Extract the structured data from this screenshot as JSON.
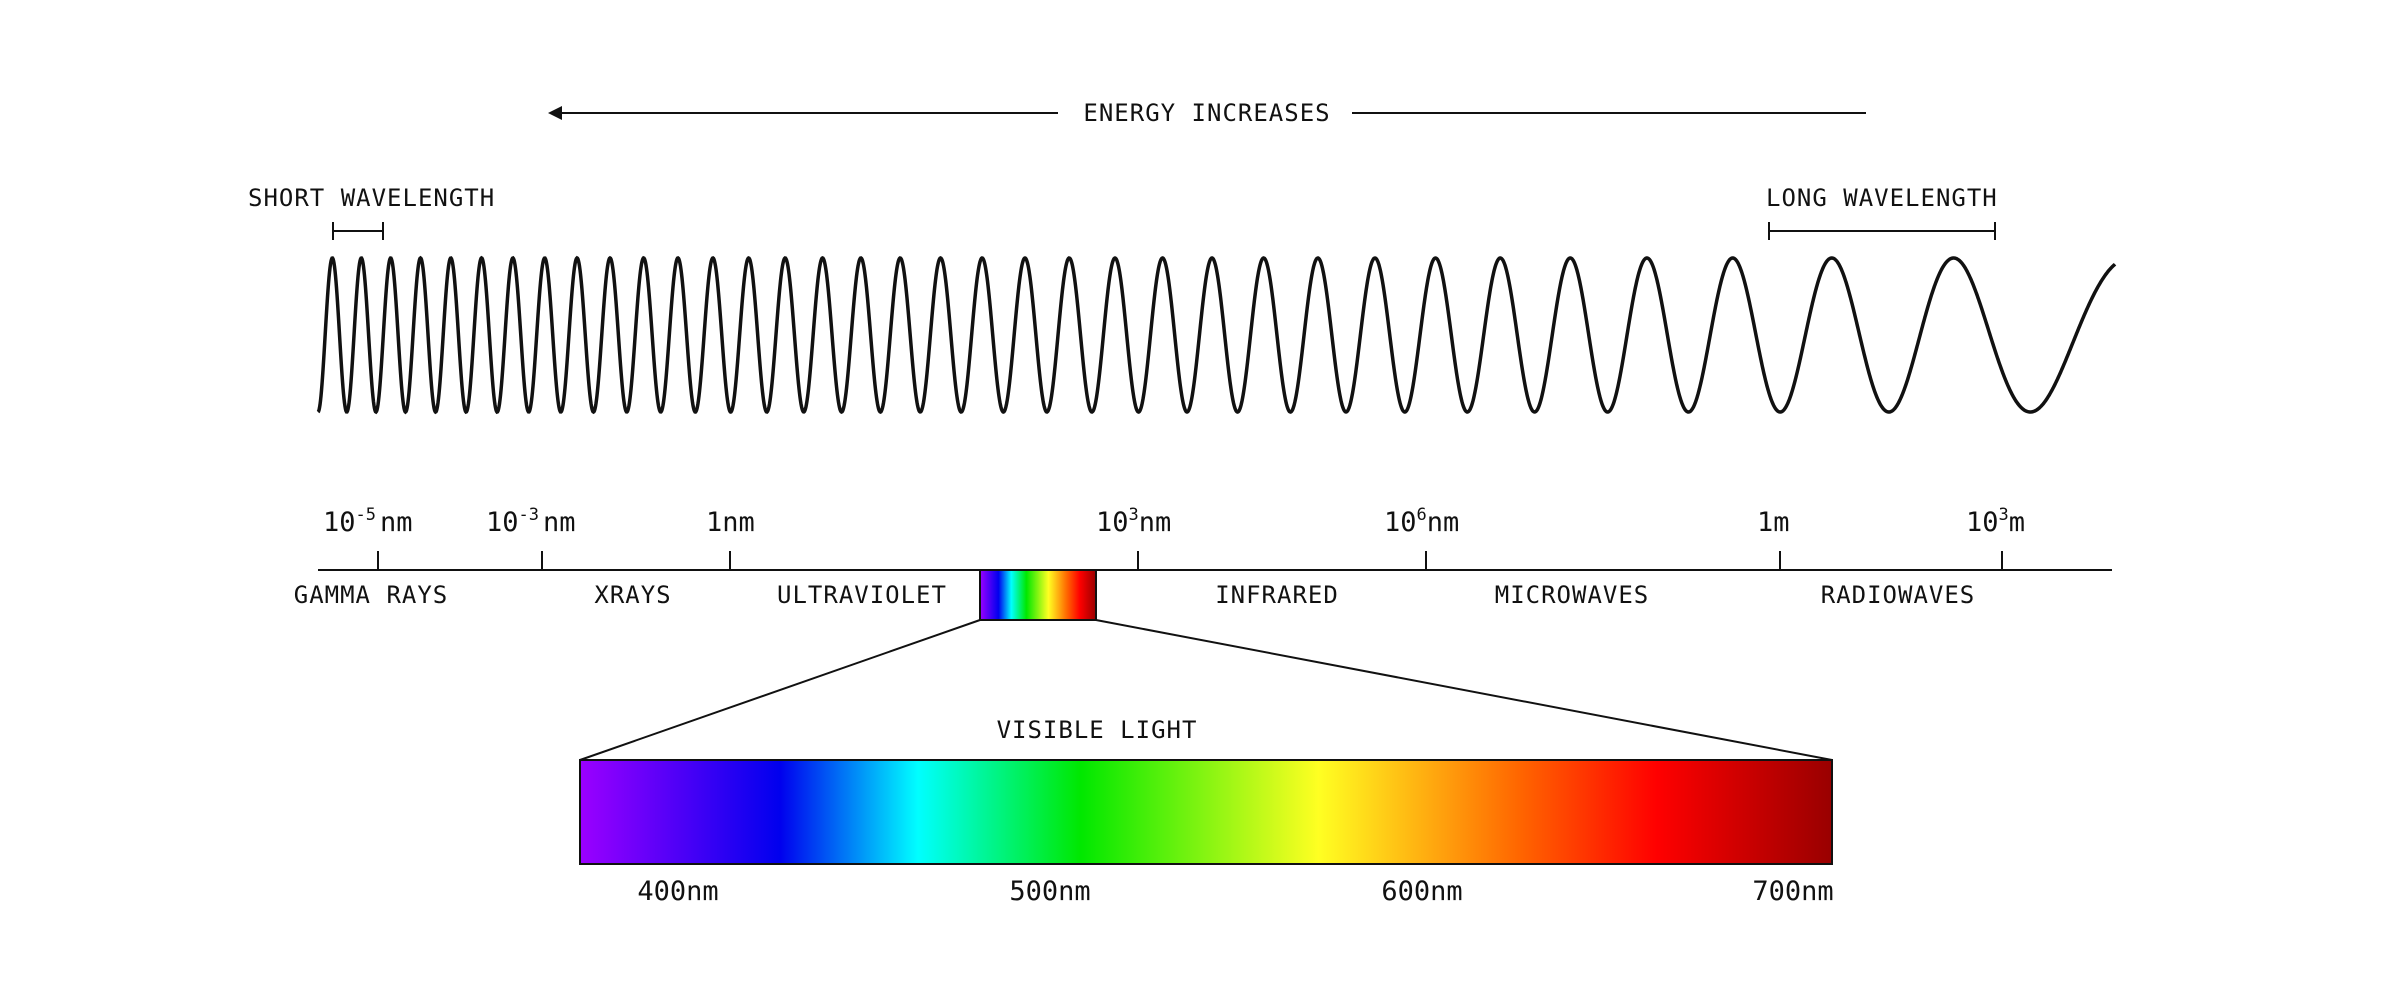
{
  "energy_label": "ENERGY INCREASES",
  "short_wavelength_label": "SHORT WAVELENGTH",
  "long_wavelength_label": "LONG WAVELENGTH",
  "scale_ticks": [
    {
      "base": "10",
      "exp": "-5",
      "unit": "nm"
    },
    {
      "base": "10",
      "exp": "-3",
      "unit": "nm"
    },
    {
      "base": "",
      "exp": "",
      "unit": "1nm"
    },
    {
      "base": "10",
      "exp": "3",
      "unit": "nm"
    },
    {
      "base": "10",
      "exp": "6",
      "unit": "nm"
    },
    {
      "base": "",
      "exp": "",
      "unit": "1m"
    },
    {
      "base": "10",
      "exp": "3",
      "unit": "m"
    }
  ],
  "bands": [
    "GAMMA RAYS",
    "XRAYS",
    "ULTRAVIOLET",
    "INFRARED",
    "MICROWAVES",
    "RADIOWAVES"
  ],
  "visible_light_label": "VISIBLE LIGHT",
  "visible_ticks": [
    "400nm",
    "500nm",
    "600nm",
    "700nm"
  ],
  "colors": {
    "ink": "#111111",
    "spectrum_stops": [
      "#9b00ff",
      "#0000ff",
      "#00ffff",
      "#00ff00",
      "#ffff00",
      "#ff6600",
      "#ff0000",
      "#990000"
    ]
  }
}
